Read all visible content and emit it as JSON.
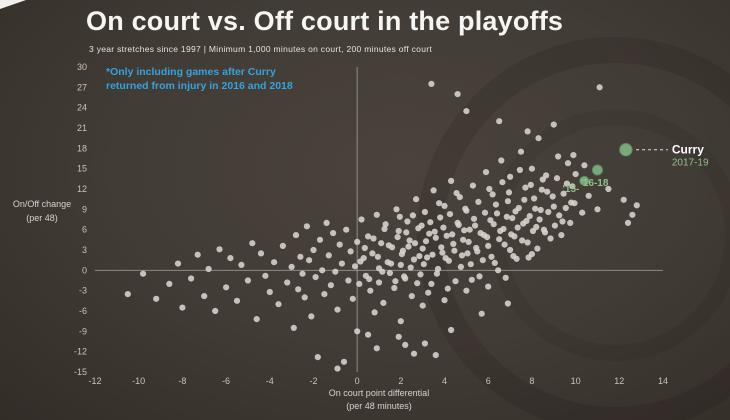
{
  "title": "On court vs. Off court in the playoffs",
  "subtitle": "3 year stretches since 1997 | Minimum 1,000 minutes on court, 200 minutes off court",
  "annotation": {
    "line1": "*Only including games after Curry",
    "line2": "returned from injury in 2016 and 2018"
  },
  "colors": {
    "background": "#423c36",
    "dot": "#d8d4d0",
    "highlight_green": "#7aa87a",
    "highlight_green_stroke": "#5e8f5e",
    "annotation_blue": "#35a3dc"
  },
  "axes": {
    "y_label_line1": "On/Off change",
    "y_label_line2": "(per 48)",
    "x_label_line1": "On court point differential",
    "x_label_line2": "(per 48 minutes)",
    "x_range": [
      -12,
      14
    ],
    "y_range": [
      -15,
      30
    ],
    "x_ticks": [
      -12,
      -10,
      -8,
      -6,
      -4,
      -2,
      0,
      2,
      4,
      6,
      8,
      10,
      12,
      14
    ],
    "y_ticks": [
      30,
      27,
      24,
      21,
      18,
      15,
      12,
      9,
      6,
      3,
      0,
      -3,
      -6,
      -9,
      -12,
      -15
    ]
  },
  "chart_data": {
    "type": "scatter",
    "title": "On court vs. Off court in the playoffs",
    "xlabel": "On court point differential (per 48 minutes)",
    "ylabel": "On/Off change (per 48)",
    "xlim": [
      -12,
      14
    ],
    "ylim": [
      -15,
      30
    ],
    "grid": "zero-lines-only",
    "series": [
      {
        "name": "player-stretches",
        "color": "#d8d4d0",
        "points": [
          [
            -10.5,
            -3.5
          ],
          [
            -9.8,
            -0.5
          ],
          [
            -9.2,
            -4.2
          ],
          [
            -8.6,
            -2.0
          ],
          [
            -8.2,
            1.0
          ],
          [
            -8.0,
            -5.5
          ],
          [
            -7.6,
            -1.2
          ],
          [
            -7.3,
            2.3
          ],
          [
            -7.0,
            -3.8
          ],
          [
            -6.8,
            0.2
          ],
          [
            -6.5,
            -6.0
          ],
          [
            -6.3,
            3.1
          ],
          [
            -6.0,
            -2.5
          ],
          [
            -5.8,
            1.8
          ],
          [
            -5.5,
            -4.5
          ],
          [
            -5.3,
            0.8
          ],
          [
            -5.0,
            -1.5
          ],
          [
            -4.8,
            4.0
          ],
          [
            -4.6,
            -7.2
          ],
          [
            -4.4,
            2.5
          ],
          [
            -4.2,
            -0.8
          ],
          [
            -4.0,
            -3.2
          ],
          [
            -3.8,
            1.2
          ],
          [
            -3.6,
            -5.0
          ],
          [
            -3.4,
            3.6
          ],
          [
            -3.2,
            -1.8
          ],
          [
            -3.0,
            0.5
          ],
          [
            -2.9,
            -8.5
          ],
          [
            -2.8,
            5.2
          ],
          [
            -2.7,
            -2.8
          ],
          [
            -2.6,
            2.0
          ],
          [
            -2.5,
            -0.5
          ],
          [
            -2.4,
            -4.0
          ],
          [
            -2.3,
            6.5
          ],
          [
            -2.2,
            1.5
          ],
          [
            -2.1,
            -6.8
          ],
          [
            -2.0,
            3.0
          ],
          [
            -1.9,
            -1.0
          ],
          [
            -1.8,
            -12.8
          ],
          [
            -1.7,
            4.5
          ],
          [
            -1.6,
            0.0
          ],
          [
            -1.5,
            -3.5
          ],
          [
            -1.4,
            7.0
          ],
          [
            -1.3,
            2.2
          ],
          [
            -1.2,
            -2.2
          ],
          [
            -1.1,
            5.5
          ],
          [
            -1.0,
            -0.2
          ],
          [
            -0.9,
            -5.8
          ],
          [
            -0.9,
            -14.5
          ],
          [
            -0.8,
            3.8
          ],
          [
            -0.7,
            1.0
          ],
          [
            -0.6,
            -13.5
          ],
          [
            -0.5,
            6.0
          ],
          [
            -0.4,
            -1.5
          ],
          [
            -0.3,
            2.8
          ],
          [
            -0.2,
            -4.2
          ],
          [
            -0.1,
            0.6
          ],
          [
            0.0,
            -9.0
          ],
          [
            0.0,
            4.2
          ],
          [
            0.1,
            -2.0
          ],
          [
            0.2,
            7.5
          ],
          [
            0.3,
            1.8
          ],
          [
            0.4,
            -0.8
          ],
          [
            0.5,
            5.0
          ],
          [
            0.5,
            -9.5
          ],
          [
            0.6,
            -3.0
          ],
          [
            0.7,
            2.5
          ],
          [
            0.8,
            -6.2
          ],
          [
            0.9,
            8.2
          ],
          [
            0.9,
            -11.5
          ],
          [
            1.0,
            0.3
          ],
          [
            1.0,
            -1.8
          ],
          [
            1.1,
            4.0
          ],
          [
            1.2,
            -4.8
          ],
          [
            1.3,
            6.8
          ],
          [
            1.4,
            1.2
          ],
          [
            1.5,
            -0.4
          ],
          [
            1.6,
            3.4
          ],
          [
            1.7,
            -2.6
          ],
          [
            1.8,
            9.0
          ],
          [
            1.9,
            5.8
          ],
          [
            1.9,
            -9.8
          ],
          [
            2.0,
            0.8
          ],
          [
            2.0,
            -7.5
          ],
          [
            2.1,
            2.9
          ],
          [
            2.2,
            -1.2
          ],
          [
            2.2,
            -11.0
          ],
          [
            2.3,
            7.2
          ],
          [
            2.4,
            4.4
          ],
          [
            2.5,
            -3.8
          ],
          [
            2.6,
            1.6
          ],
          [
            2.6,
            -12.3
          ],
          [
            2.7,
            10.5
          ],
          [
            2.8,
            6.2
          ],
          [
            2.9,
            -0.6
          ],
          [
            0.15,
            1.3
          ],
          [
            0.35,
            3.3
          ],
          [
            0.55,
            -1.3
          ],
          [
            0.75,
            4.7
          ],
          [
            0.95,
            2.0
          ],
          [
            1.15,
            -0.2
          ],
          [
            1.25,
            6.1
          ],
          [
            1.45,
            3.7
          ],
          [
            1.55,
            1.0
          ],
          [
            1.75,
            -1.6
          ],
          [
            1.85,
            4.9
          ],
          [
            1.95,
            7.9
          ],
          [
            2.05,
            2.4
          ],
          [
            2.15,
            -0.9
          ],
          [
            2.25,
            5.6
          ],
          [
            2.35,
            3.5
          ],
          [
            2.45,
            0.4
          ],
          [
            2.55,
            8.1
          ],
          [
            2.65,
            4.0
          ],
          [
            2.75,
            -1.9
          ],
          [
            2.85,
            2.1
          ],
          [
            2.95,
            6.6
          ],
          [
            3.0,
            3.2
          ],
          [
            3.0,
            -5.2
          ],
          [
            3.05,
            0.9
          ],
          [
            3.1,
            8.6
          ],
          [
            3.1,
            -10.8
          ],
          [
            3.15,
            4.3
          ],
          [
            3.2,
            1.9
          ],
          [
            3.25,
            -3.3
          ],
          [
            3.3,
            5.4
          ],
          [
            3.35,
            7.1
          ],
          [
            3.4,
            -2.0
          ],
          [
            3.4,
            27.5
          ],
          [
            3.45,
            2.3
          ],
          [
            3.5,
            11.8
          ],
          [
            3.55,
            5.7
          ],
          [
            3.6,
            4.8
          ],
          [
            3.6,
            -12.5
          ],
          [
            3.65,
            -0.5
          ],
          [
            3.7,
            0.2
          ],
          [
            3.75,
            9.9
          ],
          [
            3.8,
            7.8
          ],
          [
            3.85,
            3.4
          ],
          [
            3.9,
            2.6
          ],
          [
            3.95,
            6.3
          ],
          [
            4.0,
            -4.4
          ],
          [
            4.0,
            9.5
          ],
          [
            4.05,
            1.8
          ],
          [
            4.1,
            5.1
          ],
          [
            4.15,
            -2.7
          ],
          [
            4.2,
            1.4
          ],
          [
            4.25,
            8.3
          ],
          [
            4.3,
            13.2
          ],
          [
            4.3,
            -8.8
          ],
          [
            4.35,
            5.3
          ],
          [
            4.4,
            3.9
          ],
          [
            4.45,
            2.9
          ],
          [
            4.5,
            -1.6
          ],
          [
            4.55,
            11.4
          ],
          [
            4.6,
            7.0
          ],
          [
            4.6,
            26.0
          ],
          [
            4.65,
            6.7
          ],
          [
            4.7,
            10.8
          ],
          [
            4.75,
            0.5
          ],
          [
            4.8,
            2.2
          ],
          [
            4.85,
            4.5
          ],
          [
            4.9,
            5.9
          ],
          [
            4.95,
            9.1
          ],
          [
            5.0,
            -3.0
          ],
          [
            5.0,
            8.8
          ],
          [
            5.0,
            23.5
          ],
          [
            5.05,
            2.5
          ],
          [
            5.1,
            4.2
          ],
          [
            5.15,
            6.0
          ],
          [
            5.2,
            0.9
          ],
          [
            5.25,
            -1.4
          ],
          [
            5.3,
            12.5
          ],
          [
            5.35,
            7.6
          ],
          [
            5.4,
            6.6
          ],
          [
            5.45,
            3.3
          ],
          [
            5.5,
            2.8
          ],
          [
            5.55,
            10.1
          ],
          [
            5.6,
            -0.9
          ],
          [
            5.65,
            5.5
          ],
          [
            5.7,
            -6.4
          ],
          [
            5.75,
            1.5
          ],
          [
            5.8,
            5.2
          ],
          [
            5.85,
            8.5
          ],
          [
            5.9,
            14.5
          ],
          [
            5.95,
            4.9
          ],
          [
            6.0,
            3.6
          ],
          [
            6.0,
            -2.4
          ],
          [
            6.05,
            12.0
          ],
          [
            6.1,
            7.4
          ],
          [
            6.15,
            2.0
          ],
          [
            6.2,
            11.2
          ],
          [
            6.25,
            6.8
          ],
          [
            6.3,
            1.1
          ],
          [
            6.35,
            9.7
          ],
          [
            6.4,
            8.4
          ],
          [
            6.45,
            0.0
          ],
          [
            6.5,
            4.6
          ],
          [
            6.5,
            22.0
          ],
          [
            6.55,
            5.8
          ],
          [
            6.6,
            16.2
          ],
          [
            6.65,
            13.0
          ],
          [
            6.7,
            6.1
          ],
          [
            6.75,
            3.8
          ],
          [
            6.8,
            -1.1
          ],
          [
            6.85,
            7.9
          ],
          [
            6.9,
            10.2
          ],
          [
            6.9,
            -4.9
          ],
          [
            6.95,
            11.5
          ],
          [
            7.0,
            3.0
          ],
          [
            7.0,
            13.8
          ],
          [
            7.05,
            5.3
          ],
          [
            7.1,
            7.7
          ],
          [
            7.15,
            2.1
          ],
          [
            7.2,
            5.0
          ],
          [
            7.25,
            8.7
          ],
          [
            7.3,
            1.7
          ],
          [
            7.35,
            6.3
          ],
          [
            7.4,
            9.2
          ],
          [
            7.45,
            14.8
          ],
          [
            7.5,
            17.5
          ],
          [
            7.55,
            4.4
          ],
          [
            7.6,
            6.9
          ],
          [
            7.65,
            10.4
          ],
          [
            7.7,
            12.2
          ],
          [
            7.75,
            7.3
          ],
          [
            7.8,
            4.1
          ],
          [
            7.8,
            20.5
          ],
          [
            7.85,
            1.9
          ],
          [
            7.9,
            8.0
          ],
          [
            7.95,
            12.6
          ],
          [
            8.0,
            2.4
          ],
          [
            8.0,
            15.0
          ],
          [
            8.05,
            5.8
          ],
          [
            8.1,
            10.6
          ],
          [
            8.15,
            9.1
          ],
          [
            8.2,
            6.4
          ],
          [
            8.25,
            3.2
          ],
          [
            8.3,
            19.5
          ],
          [
            8.35,
            7.5
          ],
          [
            8.4,
            8.9
          ],
          [
            8.45,
            11.9
          ],
          [
            8.5,
            13.4
          ],
          [
            8.55,
            6.0
          ],
          [
            8.6,
            5.6
          ],
          [
            8.65,
            14.0
          ],
          [
            8.7,
            11.6
          ],
          [
            8.75,
            8.6
          ],
          [
            8.85,
            4.7
          ],
          [
            8.95,
            10.9
          ],
          [
            9.0,
            9.4
          ],
          [
            9.0,
            21.5
          ],
          [
            9.05,
            6.6
          ],
          [
            9.15,
            13.6
          ],
          [
            9.2,
            16.8
          ],
          [
            9.25,
            8.1
          ],
          [
            9.35,
            5.2
          ],
          [
            9.4,
            7.2
          ],
          [
            9.45,
            11.3
          ],
          [
            9.55,
            9.2
          ],
          [
            9.6,
            12.8
          ],
          [
            9.65,
            15.8
          ],
          [
            9.75,
            7.0
          ],
          [
            9.8,
            10.0
          ],
          [
            9.85,
            12.4
          ],
          [
            9.9,
            17.0
          ],
          [
            9.95,
            9.9
          ],
          [
            10.0,
            14.2
          ],
          [
            10.3,
            8.5
          ],
          [
            10.4,
            15.5
          ],
          [
            10.6,
            11.0
          ],
          [
            11.0,
            9.0
          ],
          [
            11.1,
            27.0
          ],
          [
            11.5,
            12.0
          ],
          [
            12.2,
            10.4
          ],
          [
            12.4,
            7.0
          ],
          [
            12.6,
            8.2
          ],
          [
            12.8,
            9.6
          ]
        ]
      },
      {
        "name": "curry-highlight",
        "color": "#7aa87a",
        "points": [
          [
            10.4,
            13.2
          ],
          [
            11.0,
            14.8
          ],
          [
            12.3,
            17.8
          ]
        ]
      }
    ],
    "highlights": [
      {
        "label": "'15-",
        "x": 10.4,
        "y": 13.2,
        "r": 4.5
      },
      {
        "label": "'16-18",
        "x": 11.0,
        "y": 14.8,
        "r": 5
      },
      {
        "label": "Curry",
        "sublabel": "2017-19",
        "x": 12.3,
        "y": 17.8,
        "r": 6.2
      }
    ]
  }
}
